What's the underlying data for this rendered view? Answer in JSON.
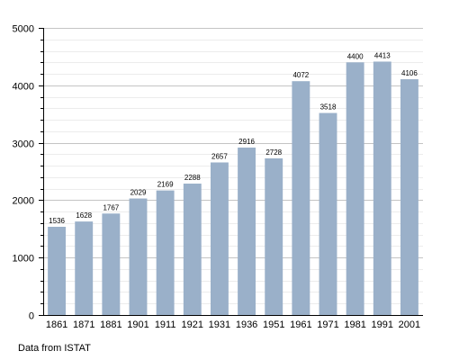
{
  "chart_data": {
    "type": "bar",
    "categories": [
      "1861",
      "1871",
      "1881",
      "1901",
      "1911",
      "1921",
      "1931",
      "1936",
      "1951",
      "1961",
      "1971",
      "1981",
      "1991",
      "2001"
    ],
    "values": [
      1536,
      1628,
      1767,
      2029,
      2169,
      2288,
      2657,
      2916,
      2728,
      4072,
      3518,
      4400,
      4413,
      4106
    ],
    "value_labels": [
      "1536",
      "1628",
      "1767",
      "2029",
      "2169",
      "2288",
      "2657",
      "2916",
      "2728",
      "4072",
      "3518",
      "4400",
      "4413",
      "4106"
    ],
    "y_ticks": [
      0,
      1000,
      2000,
      3000,
      4000,
      5000
    ],
    "y_tick_labels": [
      "0",
      "1000",
      "2000",
      "3000",
      "4000",
      "5000"
    ],
    "ylim": [
      0,
      5000
    ],
    "minor_step": 200,
    "grid": true,
    "bar_color": "#9ab0c9",
    "title": "",
    "xlabel": "",
    "ylabel": ""
  },
  "source_note": "Data from ISTAT"
}
